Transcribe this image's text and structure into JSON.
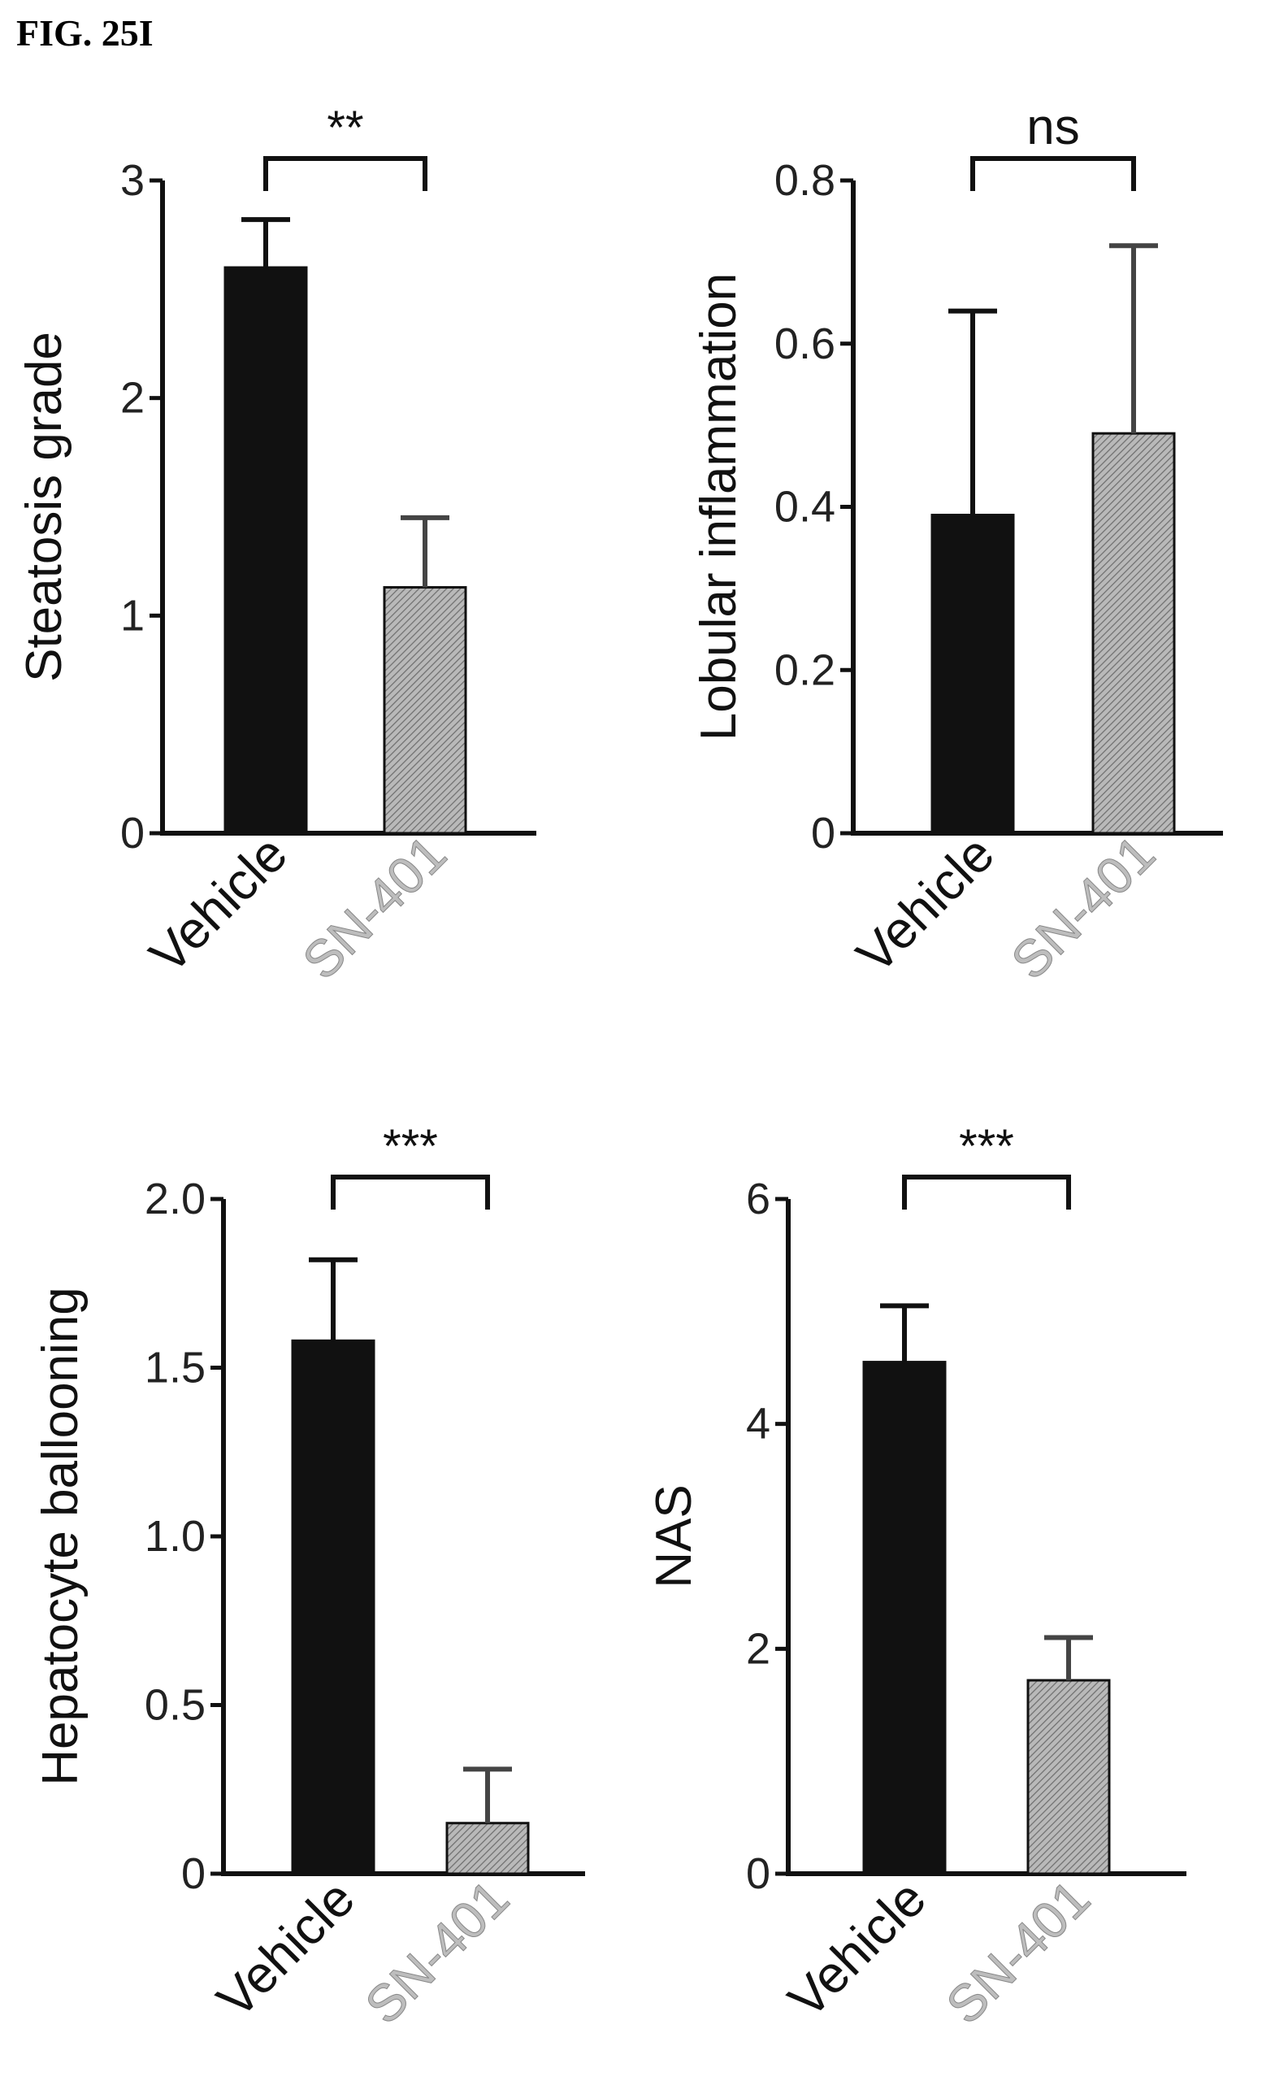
{
  "figure_label": "FIG. 25I",
  "colors": {
    "vehicle_bar": "#111111",
    "sn401_bar": "#9a9a9a",
    "sn401_text": "#bdbdbd",
    "axis": "#111111"
  },
  "chart_data": [
    {
      "type": "bar",
      "ylabel": "Steatosis grade",
      "categories": [
        "Vehicle",
        "SN-401"
      ],
      "values": [
        2.6,
        1.13
      ],
      "errors": [
        0.22,
        0.32
      ],
      "ylim": [
        0,
        3
      ],
      "yticks": [
        0,
        1,
        2,
        3
      ],
      "ytick_labels": [
        "0",
        "1",
        "2",
        "3"
      ],
      "significance": "**"
    },
    {
      "type": "bar",
      "ylabel": "Lobular inflammation",
      "categories": [
        "Vehicle",
        "SN-401"
      ],
      "values": [
        0.39,
        0.49
      ],
      "errors": [
        0.25,
        0.23
      ],
      "ylim": [
        0,
        0.8
      ],
      "yticks": [
        0,
        0.2,
        0.4,
        0.6,
        0.8
      ],
      "ytick_labels": [
        "0",
        "0.2",
        "0.4",
        "0.6",
        "0.8"
      ],
      "significance": "ns"
    },
    {
      "type": "bar",
      "ylabel": "Hepatocyte ballooning",
      "categories": [
        "Vehicle",
        "SN-401"
      ],
      "values": [
        1.58,
        0.15
      ],
      "errors": [
        0.24,
        0.16
      ],
      "ylim": [
        0,
        2.0
      ],
      "yticks": [
        0,
        0.5,
        1.0,
        1.5,
        2.0
      ],
      "ytick_labels": [
        "0",
        "0.5",
        "1.0",
        "1.5",
        "2.0"
      ],
      "significance": "***"
    },
    {
      "type": "bar",
      "ylabel": "NAS",
      "categories": [
        "Vehicle",
        "SN-401"
      ],
      "values": [
        4.55,
        1.72
      ],
      "errors": [
        0.5,
        0.38
      ],
      "ylim": [
        0,
        6
      ],
      "yticks": [
        0,
        2,
        4,
        6
      ],
      "ytick_labels": [
        "0",
        "2",
        "4",
        "6"
      ],
      "significance": "***"
    }
  ]
}
